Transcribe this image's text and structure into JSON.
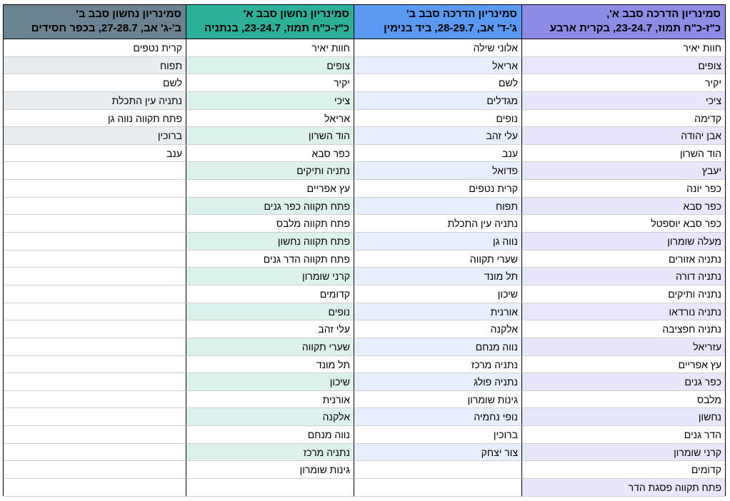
{
  "colors": {
    "col1_header": "#8c8ce6",
    "col1_band": "#e8e6fb",
    "col2_header": "#5b98f2",
    "col2_band": "#e7eefd",
    "col3_header": "#2eaf98",
    "col3_band": "#dcf0ec",
    "col4_header": "#6b8290",
    "col4_band": "#e8ecee"
  },
  "columns": [
    {
      "title": "סמינריון הדרכה סבב א',",
      "subtitle": "כ\"ז-כ\"ח תמוז, 23-24.7, בקרית ארבע",
      "items": [
        "חוות יאיר",
        "צופים",
        "יקיר",
        "ציכי",
        "קדימה",
        "אבן יהודה",
        "הוד השרון",
        "יעבץ",
        "כפר יונה",
        "כפר סבא",
        "כפר סבא יוספטל",
        "מעלה שומרון",
        "נתניה אזורים",
        "נתניה דורה",
        "נתניה ותיקים",
        "נתניה נורדאו",
        "נתניה חפציבה",
        "עזריאל",
        "עץ אפריים",
        "כפר גנים",
        "מלבס",
        "נחשון",
        "הדר גנים",
        "קרני שומרון",
        "קדומים",
        "פתח תקווה פסגת הדר"
      ]
    },
    {
      "title": "סמינריון הדרכה סבב ב'",
      "subtitle": "ג'-ד' אב, 28-29.7, ביד בנימין",
      "items": [
        "אלוני שילה",
        "אריאל",
        "לשם",
        "מגדלים",
        "נופים",
        "עלי זהב",
        "ענב",
        "פדואל",
        "קרית נטפים",
        "תפוח",
        "נתניה עין התכלת",
        "נווה גן",
        "שערי תקווה",
        "תל מונד",
        "שיכון",
        "אורנית",
        "אלקנה",
        "נווה מנחם",
        "נתניה מרכז",
        "נתניה פולג",
        "גינות שומרון",
        "נופי נחמיה",
        "ברוכין",
        "צור יצחק"
      ]
    },
    {
      "title": "סמינריון נחשון סבב א'",
      "subtitle": "כ\"ז-כ\"ח תמוז, 23-24.7, בנתניה",
      "items": [
        "חוות יאיר",
        "צופים",
        "יקיר",
        "ציכי",
        "אריאל",
        "הוד השרון",
        "כפר סבא",
        "נתניה ותיקים",
        "עץ אפריים",
        "פתח תקווה כפר גנים",
        "פתח תקווה מלבס",
        "פתח תקווה נחשון",
        "פתח תקווה הדר גנים",
        "קרני שומרון",
        "קדומים",
        "נופים",
        "עלי זהב",
        "שערי תקווה",
        "תל מונד",
        "שיכון",
        "אורנית",
        "אלקנה",
        "נווה מנחם",
        "נתניה מרכז",
        "גינות שומרון"
      ]
    },
    {
      "title": "סמינריון נחשון סבב ב'",
      "subtitle": "ב'-ג' אב, 27-28.7, בכפר חסידים",
      "items": [
        "קרית נטפים",
        "תפוח",
        "לשם",
        "נתניה עין התכלת",
        "פתח תקווה נווה גן",
        "ברוכין",
        "ענב"
      ]
    }
  ]
}
